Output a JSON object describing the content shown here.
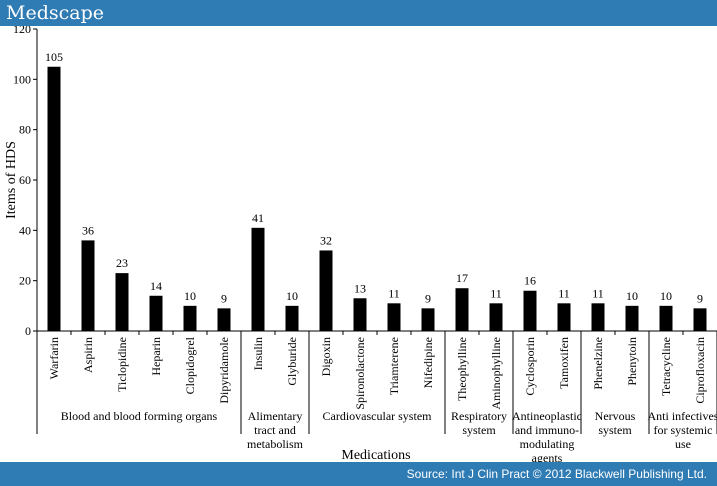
{
  "header": {
    "brand": "Medscape"
  },
  "footer": {
    "source": "Source: Int J Clin Pract © 2012 Blackwell Publishing Ltd."
  },
  "colors": {
    "bar": "#000000",
    "band": "#2f7bb3",
    "text": "#000000"
  },
  "chart_data": {
    "type": "bar",
    "ylabel": "Items of HDS",
    "xlabel": "Medications",
    "ylim": [
      0,
      120
    ],
    "yticks": [
      0,
      20,
      40,
      60,
      80,
      100,
      120
    ],
    "categories": [
      "Warfarin",
      "Aspirin",
      "Ticlopidine",
      "Heparin",
      "Clopidogrel",
      "Dipyridamole",
      "Insulin",
      "Glyburide",
      "Digoxin",
      "Spironolactone",
      "Triamterene",
      "Nifedipine",
      "Theophylline",
      "Aminophylline",
      "Cyclosporin",
      "Tamoxifen",
      "Phenelzine",
      "Phenytoin",
      "Tetracycline",
      "Ciprofloxacin"
    ],
    "values": [
      105,
      36,
      23,
      14,
      10,
      9,
      41,
      10,
      32,
      13,
      11,
      9,
      17,
      11,
      16,
      11,
      11,
      10,
      10,
      9
    ],
    "groups": [
      {
        "label": [
          "Blood and blood forming organs"
        ],
        "start": 0,
        "end": 5
      },
      {
        "label": [
          "Alimentary",
          "tract and",
          "metabolism"
        ],
        "start": 6,
        "end": 7
      },
      {
        "label": [
          "Cardiovascular system"
        ],
        "start": 8,
        "end": 11
      },
      {
        "label": [
          "Respiratory",
          "system"
        ],
        "start": 12,
        "end": 13
      },
      {
        "label": [
          "Antineoplastic",
          "and immuno-",
          "modulating",
          "agents"
        ],
        "start": 14,
        "end": 15
      },
      {
        "label": [
          "Nervous",
          "system"
        ],
        "start": 16,
        "end": 17
      },
      {
        "label": [
          "Anti infectives",
          "for systemic",
          "use"
        ],
        "start": 18,
        "end": 19
      }
    ]
  }
}
